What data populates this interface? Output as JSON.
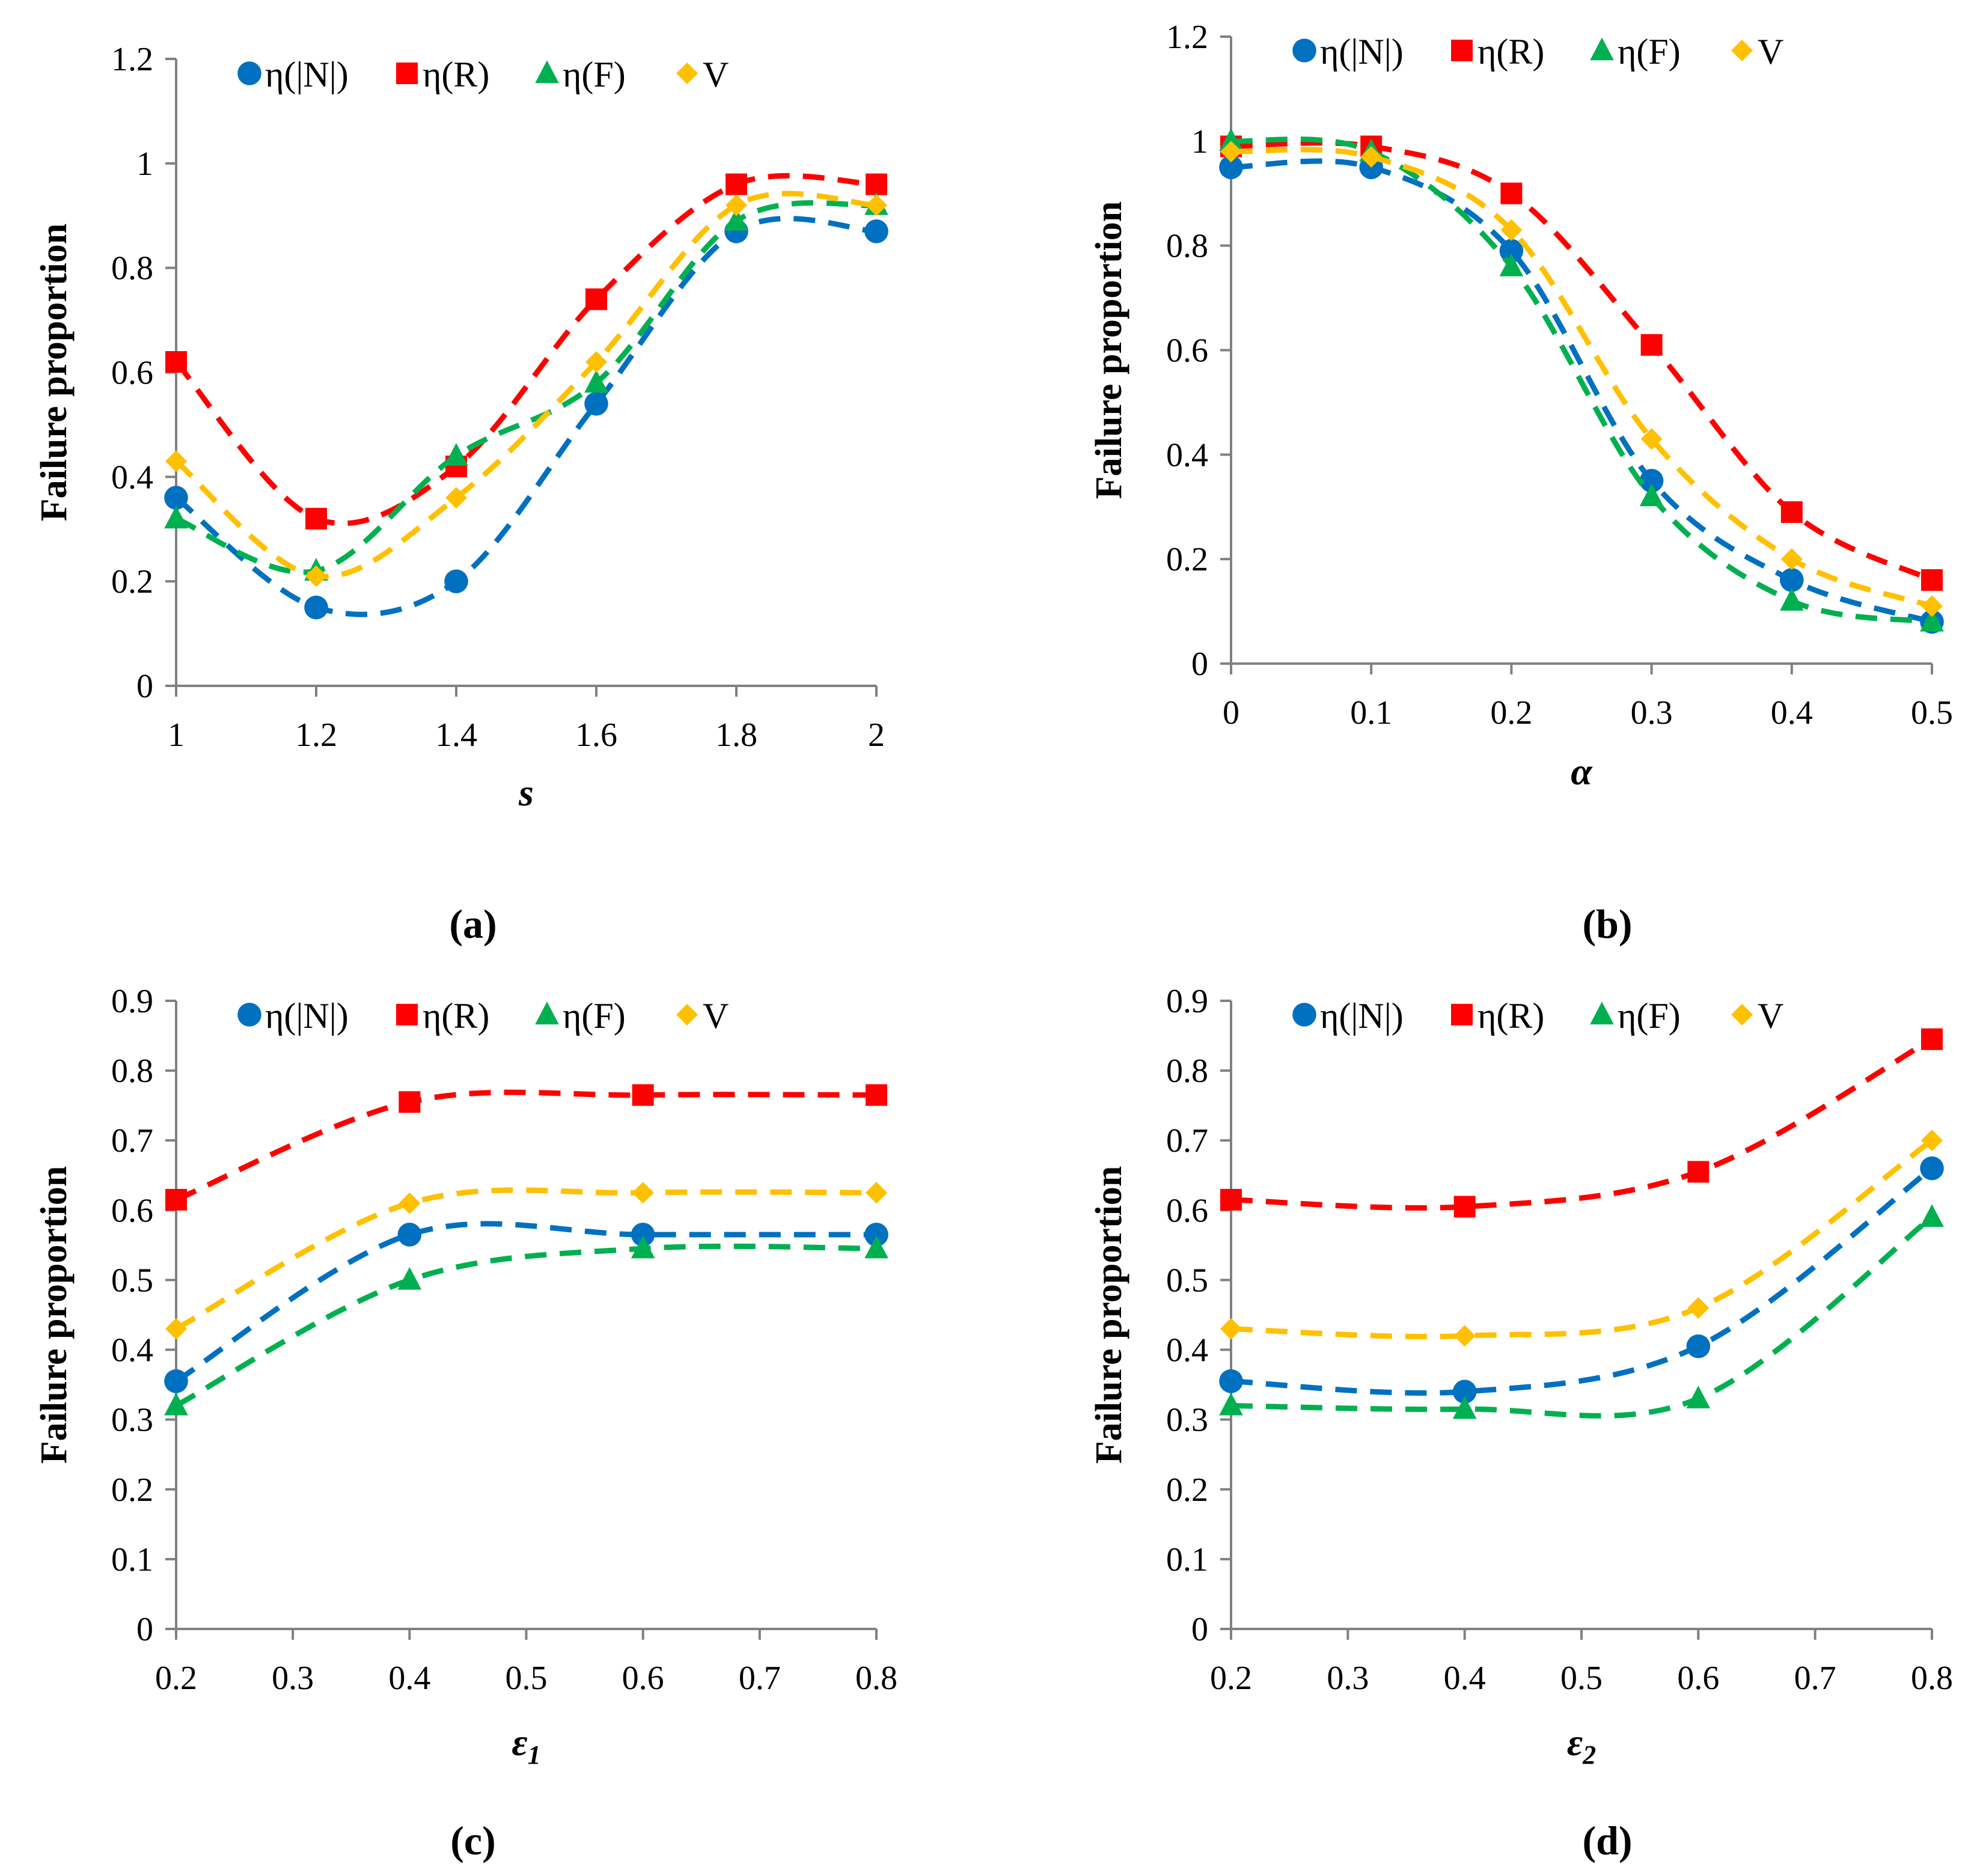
{
  "colors": {
    "N": "#0070C0",
    "R": "#FF0000",
    "F": "#00B050",
    "V": "#FFC000",
    "axis": "#808080"
  },
  "chart_data": [
    {
      "type": "line",
      "caption": "(a)",
      "xlabel": "s",
      "ylabel": "Failure proportion",
      "x": [
        1,
        1.2,
        1.4,
        1.6,
        1.8,
        2
      ],
      "xticks": [
        "1",
        "1.2",
        "1.4",
        "1.6",
        "1.8",
        "2"
      ],
      "xlim": [
        1,
        2
      ],
      "ylim": [
        0,
        1.2
      ],
      "yticks": [
        "0",
        "0.2",
        "0.4",
        "0.6",
        "0.8",
        "1",
        "1.2"
      ],
      "legend": "top",
      "series": [
        {
          "key": "N",
          "name": "η(|N|)",
          "marker": "circle",
          "values": [
            0.36,
            0.15,
            0.2,
            0.54,
            0.87,
            0.87
          ]
        },
        {
          "key": "R",
          "name": "η(R)",
          "marker": "square",
          "values": [
            0.62,
            0.32,
            0.42,
            0.74,
            0.96,
            0.96
          ]
        },
        {
          "key": "F",
          "name": "η(F)",
          "marker": "triangle",
          "values": [
            0.32,
            0.22,
            0.44,
            0.58,
            0.89,
            0.92
          ]
        },
        {
          "key": "V",
          "name": "V",
          "marker": "diamond",
          "values": [
            0.43,
            0.21,
            0.36,
            0.62,
            0.92,
            0.92
          ]
        }
      ]
    },
    {
      "type": "line",
      "caption": "(b)",
      "xlabel": "α",
      "ylabel": "Failure proportion",
      "x": [
        0,
        0.1,
        0.2,
        0.3,
        0.4,
        0.5
      ],
      "xticks": [
        "0",
        "0.1",
        "0.2",
        "0.3",
        "0.4",
        "0.5"
      ],
      "xlim": [
        0,
        0.5
      ],
      "ylim": [
        0,
        1.2
      ],
      "yticks": [
        "0",
        "0.2",
        "0.4",
        "0.6",
        "0.8",
        "1",
        "1.2"
      ],
      "legend": "top",
      "series": [
        {
          "key": "N",
          "name": "η(|N|)",
          "marker": "circle",
          "values": [
            0.95,
            0.95,
            0.79,
            0.35,
            0.16,
            0.08
          ]
        },
        {
          "key": "R",
          "name": "η(R)",
          "marker": "square",
          "values": [
            0.99,
            0.99,
            0.9,
            0.61,
            0.29,
            0.16
          ]
        },
        {
          "key": "F",
          "name": "η(F)",
          "marker": "triangle",
          "values": [
            1.0,
            0.98,
            0.76,
            0.32,
            0.12,
            0.08
          ]
        },
        {
          "key": "V",
          "name": "V",
          "marker": "diamond",
          "values": [
            0.98,
            0.97,
            0.83,
            0.43,
            0.2,
            0.11
          ]
        }
      ]
    },
    {
      "type": "line",
      "caption": "(c)",
      "xlabel": "ε1",
      "ylabel": "Failure proportion",
      "x": [
        0.2,
        0.4,
        0.6,
        0.8
      ],
      "xticks": [
        "0.2",
        "0.3",
        "0.4",
        "0.5",
        "0.6",
        "0.7",
        "0.8"
      ],
      "xlim": [
        0.2,
        0.8
      ],
      "ylim": [
        0,
        0.9
      ],
      "yticks": [
        "0",
        "0.1",
        "0.2",
        "0.3",
        "0.4",
        "0.5",
        "0.6",
        "0.7",
        "0.8",
        "0.9"
      ],
      "legend": "top",
      "series": [
        {
          "key": "N",
          "name": "η(|N|)",
          "marker": "circle",
          "values": [
            0.355,
            0.565,
            0.565,
            0.565
          ]
        },
        {
          "key": "R",
          "name": "η(R)",
          "marker": "square",
          "values": [
            0.615,
            0.755,
            0.765,
            0.765
          ]
        },
        {
          "key": "F",
          "name": "η(F)",
          "marker": "triangle",
          "values": [
            0.32,
            0.5,
            0.545,
            0.545
          ]
        },
        {
          "key": "V",
          "name": "V",
          "marker": "diamond",
          "values": [
            0.43,
            0.61,
            0.625,
            0.625
          ]
        }
      ]
    },
    {
      "type": "line",
      "caption": "(d)",
      "xlabel": "ε2",
      "ylabel": "Failure proportion",
      "x": [
        0.2,
        0.4,
        0.6,
        0.8
      ],
      "xticks": [
        "0.2",
        "0.3",
        "0.4",
        "0.5",
        "0.6",
        "0.7",
        "0.8"
      ],
      "xlim": [
        0.2,
        0.8
      ],
      "ylim": [
        0,
        0.9
      ],
      "yticks": [
        "0",
        "0.1",
        "0.2",
        "0.3",
        "0.4",
        "0.5",
        "0.6",
        "0.7",
        "0.8",
        "0.9"
      ],
      "legend": "top",
      "series": [
        {
          "key": "N",
          "name": "η(|N|)",
          "marker": "circle",
          "values": [
            0.355,
            0.34,
            0.405,
            0.66
          ]
        },
        {
          "key": "R",
          "name": "η(R)",
          "marker": "square",
          "values": [
            0.615,
            0.605,
            0.655,
            0.845
          ]
        },
        {
          "key": "F",
          "name": "η(F)",
          "marker": "triangle",
          "values": [
            0.32,
            0.315,
            0.33,
            0.59
          ]
        },
        {
          "key": "V",
          "name": "V",
          "marker": "diamond",
          "values": [
            0.43,
            0.42,
            0.46,
            0.7
          ]
        }
      ]
    }
  ]
}
